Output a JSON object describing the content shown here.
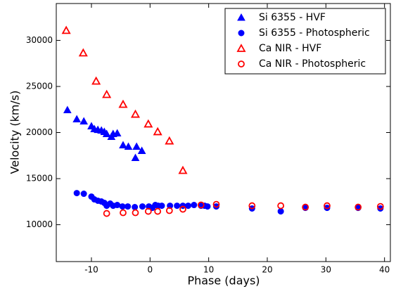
{
  "chart_data": {
    "type": "scatter",
    "xlabel": "Phase (days)",
    "ylabel": "Velocity (km/s)",
    "xlim": [
      -16,
      41
    ],
    "ylim": [
      6000,
      34000
    ],
    "xticks": [
      -10,
      0,
      10,
      20,
      30,
      40
    ],
    "yticks": [
      10000,
      15000,
      20000,
      25000,
      30000
    ],
    "legend": "upper right",
    "series": [
      {
        "name": "Si 6355 - HVF",
        "color": "#0000ff",
        "marker": "triangle",
        "filled": true,
        "x": [
          -14.1,
          -12.5,
          -11.3,
          -10,
          -9.5,
          -8.9,
          -8.3,
          -7.8,
          -7.4,
          -6.6,
          -6.3,
          -5.6,
          -4.6,
          -3.7,
          -2.5,
          -2.3,
          -1.4
        ],
        "values": [
          22440,
          21450,
          21220,
          20690,
          20380,
          20300,
          20230,
          20080,
          19850,
          19540,
          19850,
          19920,
          18630,
          18470,
          17250,
          18470,
          18020
        ]
      },
      {
        "name": "Si 6355 - Photospheric",
        "color": "#0000ff",
        "marker": "circle",
        "filled": true,
        "x": [
          -12.5,
          -11.3,
          -10,
          -9.5,
          -8.9,
          -8.3,
          -7.8,
          -7.4,
          -6.8,
          -6.3,
          -5.6,
          -4.7,
          -3.8,
          -2.6,
          -1.3,
          -0.2,
          0.4,
          0.9,
          1.4,
          2,
          3.4,
          4.6,
          5.6,
          6.5,
          7.5,
          8.7,
          9.3,
          9.8,
          11.3,
          17.4,
          22.3,
          26.5,
          30.2,
          35.5,
          39.3
        ],
        "values": [
          13430,
          13360,
          13050,
          12750,
          12600,
          12520,
          12370,
          12060,
          12290,
          12060,
          12140,
          11980,
          11980,
          11910,
          11980,
          11980,
          11830,
          12140,
          12060,
          12060,
          12060,
          12060,
          12060,
          12060,
          12140,
          12060,
          12060,
          11980,
          11980,
          11760,
          11450,
          11830,
          11830,
          11830,
          11760
        ]
      },
      {
        "name": "Ca NIR - HVF",
        "color": "#ff0000",
        "marker": "triangle",
        "filled": false,
        "x": [
          -14.3,
          -11.4,
          -9.2,
          -7.4,
          -4.6,
          -2.5,
          -0.3,
          1.3,
          3.3,
          5.6
        ],
        "values": [
          31070,
          28630,
          25570,
          24120,
          23050,
          21980,
          20920,
          20080,
          19080,
          15880
        ]
      },
      {
        "name": "Ca NIR - Photospheric",
        "color": "#ff0000",
        "marker": "circle",
        "filled": false,
        "x": [
          -7.4,
          -4.6,
          -2.5,
          -0.3,
          1.3,
          3.3,
          5.6,
          8.7,
          11.3,
          17.4,
          22.3,
          26.5,
          30.2,
          35.5,
          39.3
        ],
        "values": [
          11220,
          11300,
          11300,
          11450,
          11450,
          11530,
          11680,
          12140,
          12210,
          12060,
          12060,
          11910,
          12060,
          11910,
          11980
        ]
      }
    ]
  }
}
